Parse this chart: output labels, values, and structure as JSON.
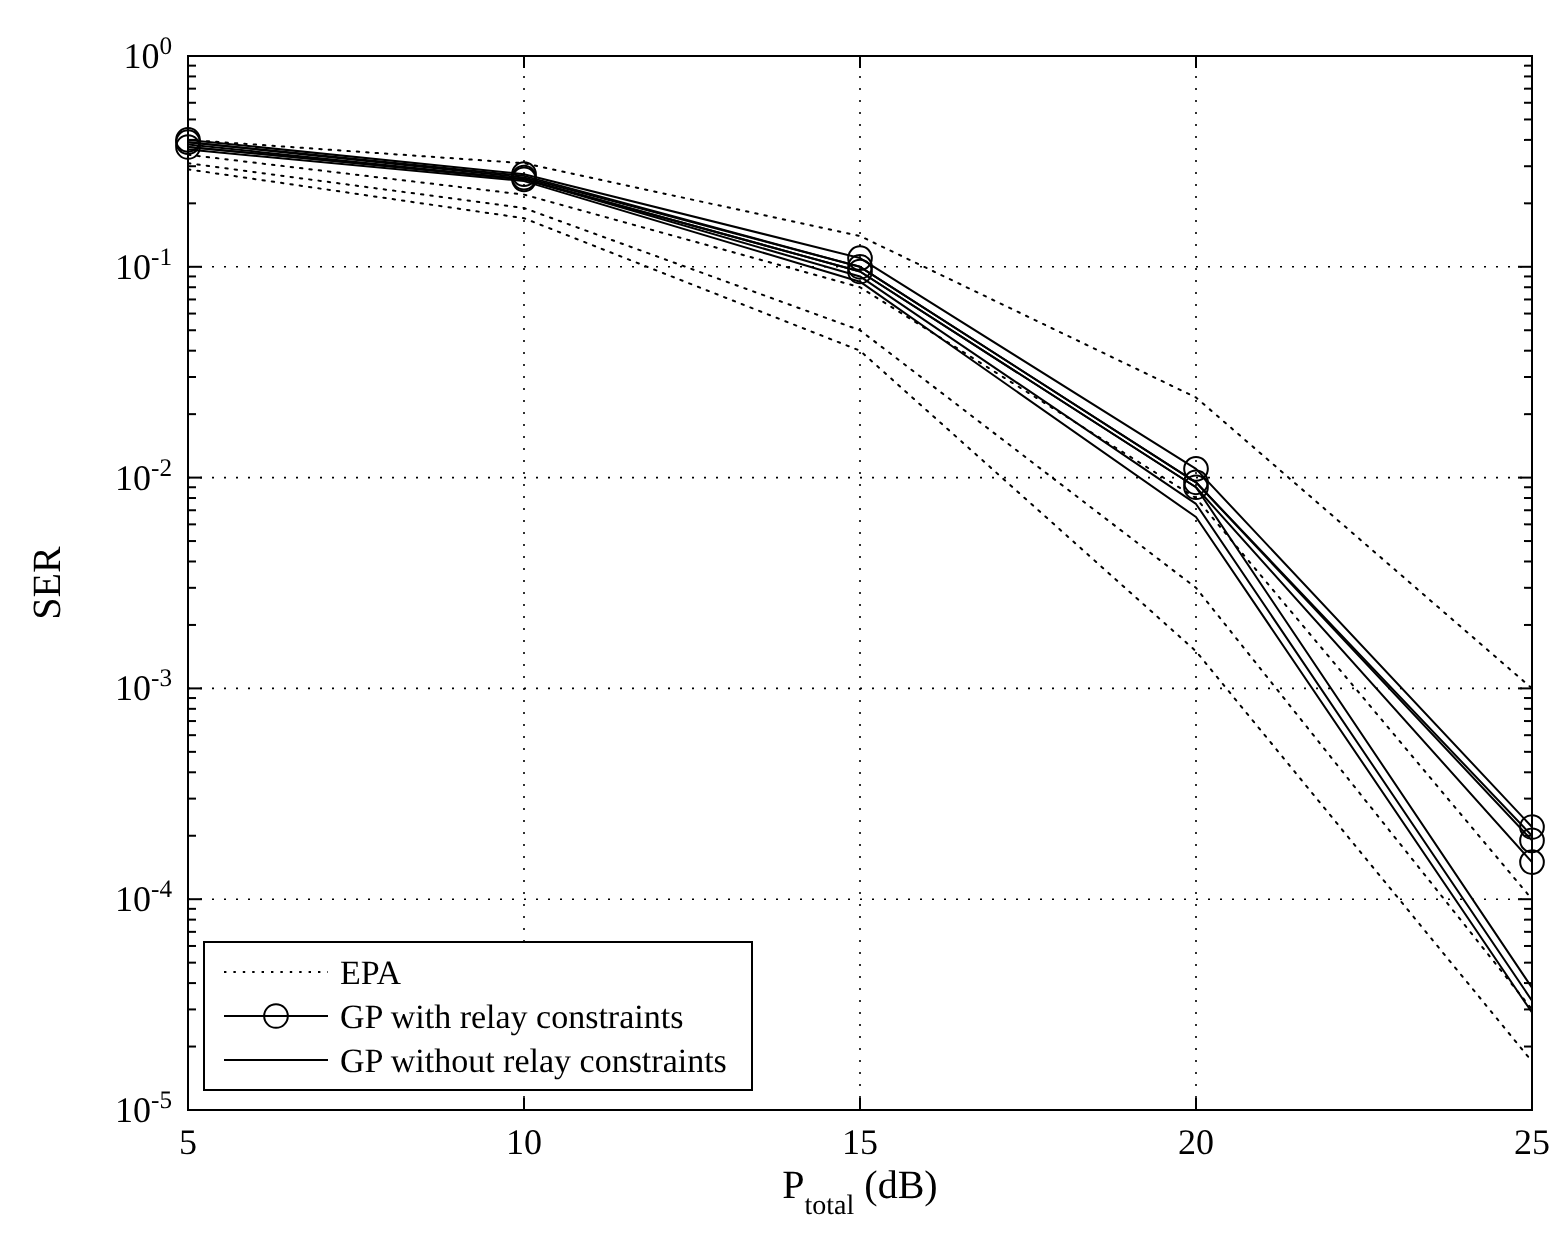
{
  "chart_data": {
    "type": "line",
    "xlabel": "P$_{total}$ (dB)",
    "ylabel": "SER",
    "x": [
      5,
      10,
      15,
      20,
      25
    ],
    "log": "y",
    "xlim": [
      5,
      25
    ],
    "ylim": [
      1e-05,
      1
    ],
    "xticks": [
      5,
      10,
      15,
      20,
      25
    ],
    "yticks": [
      {
        "value": 1e-05,
        "label": "10$^{-5}$"
      },
      {
        "value": 0.0001,
        "label": "10$^{-4}$"
      },
      {
        "value": 0.001,
        "label": "10$^{-3}$"
      },
      {
        "value": 0.01,
        "label": "10$^{-2}$"
      },
      {
        "value": 0.1,
        "label": "10$^{-1}$"
      },
      {
        "value": 1,
        "label": "10$^{0}$"
      }
    ],
    "grid": true,
    "legend": "bottom left",
    "series": [
      {
        "name": "EPA",
        "color": "#000000",
        "line_style": "dotted",
        "marker": "none",
        "values": [
          0.4,
          0.31,
          0.14,
          0.024,
          0.001
        ]
      },
      {
        "color": "#000000",
        "line_style": "dotted",
        "marker": "none",
        "values": [
          0.34,
          0.22,
          0.08,
          0.008,
          0.0001
        ]
      },
      {
        "color": "#000000",
        "line_style": "dotted",
        "marker": "none",
        "values": [
          0.31,
          0.19,
          0.05,
          0.003,
          3e-05
        ]
      },
      {
        "color": "#000000",
        "line_style": "dotted",
        "marker": "none",
        "values": [
          0.29,
          0.17,
          0.04,
          0.0015,
          1.7e-05
        ]
      },
      {
        "name": "GP with relay constraints",
        "color": "#000000",
        "line_style": "solid",
        "marker": "circle",
        "values": [
          0.4,
          0.275,
          0.11,
          0.011,
          0.00022
        ]
      },
      {
        "color": "#000000",
        "line_style": "solid",
        "marker": "circle",
        "values": [
          0.39,
          0.265,
          0.1,
          0.0095,
          0.00019
        ]
      },
      {
        "color": "#000000",
        "line_style": "solid",
        "marker": "circle",
        "values": [
          0.37,
          0.26,
          0.095,
          0.009,
          0.00015
        ]
      },
      {
        "name": "GP without relay constraints",
        "color": "#000000",
        "line_style": "solid",
        "marker": "none",
        "values": [
          0.39,
          0.27,
          0.1,
          0.0095,
          0.0002
        ]
      },
      {
        "color": "#000000",
        "line_style": "solid",
        "marker": "none",
        "values": [
          0.38,
          0.26,
          0.095,
          0.009,
          3.8e-05
        ]
      },
      {
        "color": "#000000",
        "line_style": "solid",
        "marker": "none",
        "values": [
          0.37,
          0.26,
          0.09,
          0.0075,
          3.3e-05
        ]
      },
      {
        "color": "#000000",
        "line_style": "solid",
        "marker": "none",
        "values": [
          0.36,
          0.255,
          0.085,
          0.0065,
          2.9e-05
        ]
      }
    ]
  }
}
